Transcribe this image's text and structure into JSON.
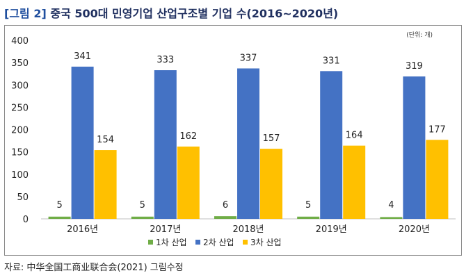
{
  "figure": {
    "label": "[그림 2]",
    "title": "중국 500대 민영기업 산업구조별 기업 수(2016~2020년)"
  },
  "unit_note": "(단위: 개)",
  "source": "자료: 中华全国工商业联合会(2021) 그림수정",
  "colors": {
    "primary": "#70ad47",
    "secondary": "#4472c4",
    "tertiary": "#ffc000"
  },
  "chart_data": {
    "type": "bar",
    "categories": [
      "2016년",
      "2017년",
      "2018년",
      "2019년",
      "2020년"
    ],
    "series": [
      {
        "name": "1차 산업",
        "values": [
          5,
          5,
          6,
          5,
          4
        ]
      },
      {
        "name": "2차 산업",
        "values": [
          341,
          333,
          337,
          331,
          319
        ]
      },
      {
        "name": "3차 산업",
        "values": [
          154,
          162,
          157,
          164,
          177
        ]
      }
    ],
    "ylim": [
      0,
      400
    ],
    "yticks": [
      0,
      50,
      100,
      150,
      200,
      250,
      300,
      350,
      400
    ],
    "grid": false,
    "legend": "bottom"
  }
}
